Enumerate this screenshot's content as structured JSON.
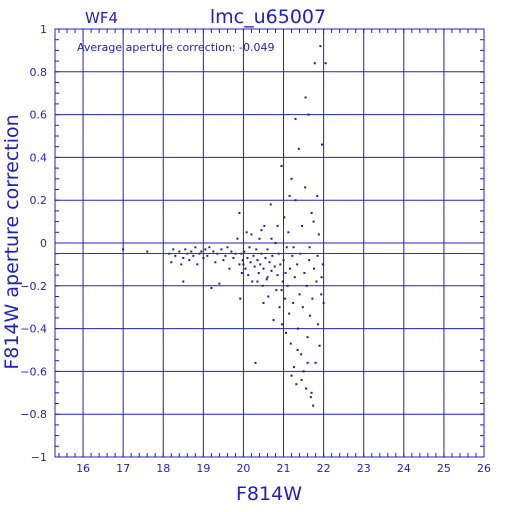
{
  "header": {
    "chip_label": "WF4",
    "dataset_title": "lmc_u65007"
  },
  "annotation": "Average aperture correction: -0.049",
  "colors": {
    "frame": "#1f1fc8",
    "points": "#1a1aa8",
    "reference_line": "#e00000",
    "text": "#1f1fc8",
    "background": "#ffffff"
  },
  "chart_data": {
    "type": "scatter",
    "title": "lmc_u65007",
    "subtitle": "WF4",
    "xlabel": "F814W",
    "ylabel": "F814W aperture correction",
    "xlim": [
      15.3,
      26
    ],
    "ylim": [
      -1,
      1
    ],
    "grid": true,
    "x_ticks": [
      16,
      17,
      18,
      19,
      20,
      21,
      22,
      23,
      24,
      25,
      26
    ],
    "y_ticks": [
      -1,
      -0.8,
      -0.6,
      -0.4,
      -0.2,
      0,
      0.2,
      0.4,
      0.6,
      0.8,
      1
    ],
    "x_tick_labels": [
      "16",
      "17",
      "18",
      "19",
      "20",
      "21",
      "22",
      "23",
      "24",
      "25",
      "26"
    ],
    "y_tick_labels": [
      "−1",
      "−0.8",
      "−0.6",
      "−0.4",
      "−0.2",
      "0",
      "0.2",
      "0.4",
      "0.6",
      "0.8",
      "1"
    ],
    "reference_line": {
      "y": -0.049
    },
    "points": [
      [
        17.0,
        -0.03
      ],
      [
        17.6,
        -0.04
      ],
      [
        18.15,
        -0.05
      ],
      [
        18.2,
        -0.09
      ],
      [
        18.25,
        -0.03
      ],
      [
        18.3,
        -0.06
      ],
      [
        18.4,
        -0.04
      ],
      [
        18.45,
        -0.1
      ],
      [
        18.5,
        -0.07
      ],
      [
        18.5,
        -0.18
      ],
      [
        18.55,
        -0.03
      ],
      [
        18.6,
        -0.05
      ],
      [
        18.65,
        -0.08
      ],
      [
        18.7,
        -0.04
      ],
      [
        18.75,
        -0.06
      ],
      [
        18.8,
        -0.02
      ],
      [
        18.85,
        -0.1
      ],
      [
        18.9,
        -0.05
      ],
      [
        18.95,
        -0.04
      ],
      [
        19.0,
        -0.07
      ],
      [
        19.05,
        -0.03
      ],
      [
        19.1,
        -0.06
      ],
      [
        19.15,
        -0.02
      ],
      [
        19.2,
        -0.21
      ],
      [
        19.25,
        -0.04
      ],
      [
        19.3,
        -0.09
      ],
      [
        19.35,
        -0.05
      ],
      [
        19.4,
        -0.19
      ],
      [
        19.45,
        -0.03
      ],
      [
        19.5,
        -0.08
      ],
      [
        19.55,
        -0.06
      ],
      [
        19.6,
        -0.02
      ],
      [
        19.65,
        -0.12
      ],
      [
        19.7,
        -0.04
      ],
      [
        19.75,
        -0.07
      ],
      [
        19.8,
        -0.05
      ],
      [
        19.85,
        0.02
      ],
      [
        19.9,
        -0.1
      ],
      [
        19.9,
        0.14
      ],
      [
        19.92,
        -0.26
      ],
      [
        19.95,
        -0.05
      ],
      [
        19.96,
        -0.14
      ],
      [
        19.98,
        -0.08
      ],
      [
        20.0,
        -0.1
      ],
      [
        20.02,
        -0.04
      ],
      [
        20.05,
        -0.12
      ],
      [
        20.08,
        0.05
      ],
      [
        20.1,
        -0.07
      ],
      [
        20.12,
        -0.15
      ],
      [
        20.15,
        -0.02
      ],
      [
        20.18,
        -0.09
      ],
      [
        20.2,
        0.04
      ],
      [
        20.22,
        -0.18
      ],
      [
        20.25,
        -0.06
      ],
      [
        20.28,
        -0.11
      ],
      [
        20.3,
        -0.56
      ],
      [
        20.32,
        -0.03
      ],
      [
        20.35,
        -0.08
      ],
      [
        20.38,
        -0.14
      ],
      [
        20.4,
        0.02
      ],
      [
        20.42,
        -0.1
      ],
      [
        20.45,
        -0.05
      ],
      [
        20.48,
        -0.2
      ],
      [
        20.5,
        -0.12
      ],
      [
        20.52,
        0.08
      ],
      [
        20.55,
        -0.07
      ],
      [
        20.58,
        -0.17
      ],
      [
        20.6,
        -0.03
      ],
      [
        20.62,
        -0.25
      ],
      [
        20.65,
        -0.09
      ],
      [
        20.68,
        0.18
      ],
      [
        20.7,
        -0.13
      ],
      [
        20.72,
        -0.06
      ],
      [
        20.75,
        -0.36
      ],
      [
        20.78,
        -0.11
      ],
      [
        20.8,
        0.0
      ],
      [
        20.82,
        -0.22
      ],
      [
        20.85,
        -0.15
      ],
      [
        20.88,
        -0.05
      ],
      [
        20.9,
        -0.3
      ],
      [
        20.92,
        -0.1
      ],
      [
        20.95,
        0.36
      ],
      [
        20.96,
        -0.38
      ],
      [
        20.98,
        -0.18
      ],
      [
        21.0,
        -0.08
      ],
      [
        21.02,
        0.12
      ],
      [
        21.04,
        -0.26
      ],
      [
        21.06,
        -0.42
      ],
      [
        21.08,
        -0.02
      ],
      [
        21.1,
        -0.2
      ],
      [
        21.12,
        0.05
      ],
      [
        21.14,
        -0.33
      ],
      [
        21.16,
        -0.12
      ],
      [
        21.18,
        -0.47
      ],
      [
        21.2,
        0.3
      ],
      [
        21.22,
        -0.06
      ],
      [
        21.24,
        -0.28
      ],
      [
        21.26,
        -0.58
      ],
      [
        21.28,
        -0.16
      ],
      [
        21.3,
        0.2
      ],
      [
        21.32,
        -0.66
      ],
      [
        21.34,
        -0.1
      ],
      [
        21.36,
        -0.4
      ],
      [
        21.38,
        0.44
      ],
      [
        21.4,
        -0.24
      ],
      [
        21.42,
        -0.05
      ],
      [
        21.44,
        -0.52
      ],
      [
        21.46,
        0.08
      ],
      [
        21.48,
        -0.3
      ],
      [
        21.5,
        -0.6
      ],
      [
        21.52,
        -0.14
      ],
      [
        21.54,
        0.26
      ],
      [
        21.56,
        -0.68
      ],
      [
        21.58,
        -0.2
      ],
      [
        21.6,
        -0.44
      ],
      [
        21.62,
        0.6
      ],
      [
        21.64,
        -0.08
      ],
      [
        21.66,
        -0.34
      ],
      [
        21.68,
        -0.72
      ],
      [
        21.7,
        0.14
      ],
      [
        21.72,
        -0.26
      ],
      [
        21.74,
        -0.76
      ],
      [
        21.76,
        -0.12
      ],
      [
        21.78,
        0.84
      ],
      [
        21.8,
        -0.56
      ],
      [
        21.82,
        -0.18
      ],
      [
        21.84,
        0.22
      ],
      [
        21.86,
        -0.38
      ],
      [
        21.88,
        0.04
      ],
      [
        21.9,
        -0.48
      ],
      [
        21.92,
        0.92
      ],
      [
        21.94,
        -0.24
      ],
      [
        21.96,
        0.46
      ],
      [
        21.98,
        -0.1
      ],
      [
        22.0,
        -0.28
      ],
      [
        22.05,
        0.84
      ],
      [
        21.55,
        0.68
      ],
      [
        21.3,
        0.58
      ],
      [
        21.2,
        -0.62
      ],
      [
        21.45,
        -0.64
      ],
      [
        21.7,
        -0.7
      ],
      [
        21.6,
        -0.56
      ],
      [
        21.35,
        -0.5
      ],
      [
        21.25,
        -0.02
      ],
      [
        21.15,
        0.22
      ],
      [
        21.05,
        -0.14
      ],
      [
        20.95,
        -0.22
      ],
      [
        21.65,
        -0.02
      ],
      [
        21.75,
        0.1
      ],
      [
        21.85,
        -0.06
      ],
      [
        21.95,
        -0.16
      ],
      [
        20.85,
        0.08
      ],
      [
        20.7,
        0.02
      ],
      [
        20.6,
        -0.16
      ],
      [
        20.5,
        -0.28
      ],
      [
        20.45,
        0.06
      ],
      [
        20.35,
        -0.18
      ]
    ]
  }
}
